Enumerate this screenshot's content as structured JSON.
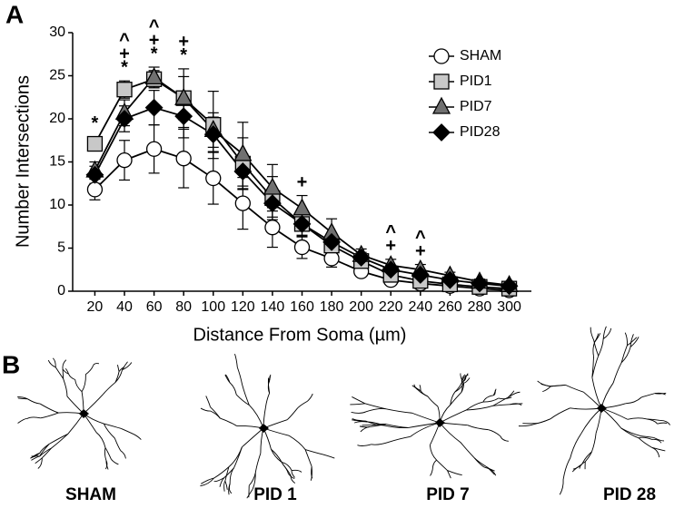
{
  "panels": [
    "A",
    "B"
  ],
  "chart_data": {
    "type": "line",
    "xlabel": "Distance From Soma (µm)",
    "ylabel": "Number Intersections",
    "x": [
      20,
      40,
      60,
      80,
      100,
      120,
      140,
      160,
      180,
      200,
      220,
      240,
      260,
      280,
      300
    ],
    "xlim": [
      5,
      315
    ],
    "xticks": [
      20,
      40,
      60,
      80,
      100,
      120,
      140,
      160,
      180,
      200,
      220,
      240,
      260,
      280,
      300
    ],
    "ylim": [
      0,
      30
    ],
    "yticks": [
      0,
      5,
      10,
      15,
      20,
      25,
      30
    ],
    "legend_position": "upper right",
    "series": [
      {
        "name": "SHAM",
        "marker": "circle",
        "color": "#ffffff",
        "values": [
          11.8,
          15.2,
          16.5,
          15.4,
          13.1,
          10.2,
          7.4,
          5.1,
          3.8,
          2.3,
          1.3,
          0.9,
          0.6,
          0.3,
          0.1
        ],
        "errors": [
          1.2,
          2.3,
          2.8,
          3.4,
          3.0,
          3.0,
          2.3,
          1.3,
          1.0,
          0.5,
          0.4,
          0.3,
          0.2,
          0.2,
          0.1
        ]
      },
      {
        "name": "PID1",
        "marker": "square",
        "color": "#c8c8c8",
        "values": [
          17.1,
          23.4,
          24.6,
          22.4,
          19.3,
          14.8,
          10.8,
          7.8,
          5.3,
          3.5,
          1.9,
          1.2,
          0.8,
          0.5,
          0.3
        ],
        "errors": [
          0.8,
          1.0,
          1.0,
          2.5,
          3.9,
          3.0,
          2.5,
          1.5,
          1.0,
          0.6,
          0.4,
          0.3,
          0.2,
          0.2,
          0.2
        ]
      },
      {
        "name": "PID7",
        "marker": "triangle",
        "color": "#707070",
        "values": [
          14.0,
          20.7,
          24.8,
          22.4,
          18.7,
          15.9,
          12.0,
          9.6,
          6.8,
          4.2,
          3.0,
          2.5,
          1.8,
          1.1,
          0.7
        ],
        "errors": [
          1.0,
          1.5,
          1.2,
          3.4,
          2.0,
          3.7,
          2.7,
          1.5,
          1.6,
          0.7,
          0.7,
          0.6,
          0.4,
          0.3,
          0.2
        ]
      },
      {
        "name": "PID28",
        "marker": "diamond",
        "color": "#000000",
        "values": [
          13.5,
          20.0,
          21.3,
          20.3,
          18.2,
          13.9,
          10.2,
          7.8,
          5.7,
          3.9,
          2.5,
          1.9,
          1.3,
          0.9,
          0.6
        ],
        "errors": [
          1.0,
          1.5,
          2.0,
          2.5,
          2.0,
          2.0,
          1.6,
          1.3,
          1.0,
          0.6,
          0.5,
          0.4,
          0.3,
          0.2,
          0.2
        ]
      }
    ],
    "annotations": [
      {
        "x": 20,
        "lines": [
          "*"
        ]
      },
      {
        "x": 40,
        "lines": [
          "^",
          "+",
          "*"
        ]
      },
      {
        "x": 60,
        "lines": [
          "^",
          "+",
          "*"
        ]
      },
      {
        "x": 80,
        "lines": [
          "+",
          "*"
        ]
      },
      {
        "x": 160,
        "lines": [
          "+"
        ]
      },
      {
        "x": 220,
        "lines": [
          "^",
          "+"
        ]
      },
      {
        "x": 240,
        "lines": [
          "^",
          "+"
        ]
      }
    ]
  },
  "cells": [
    "SHAM",
    "PID 1",
    "PID 7",
    "PID 28"
  ]
}
